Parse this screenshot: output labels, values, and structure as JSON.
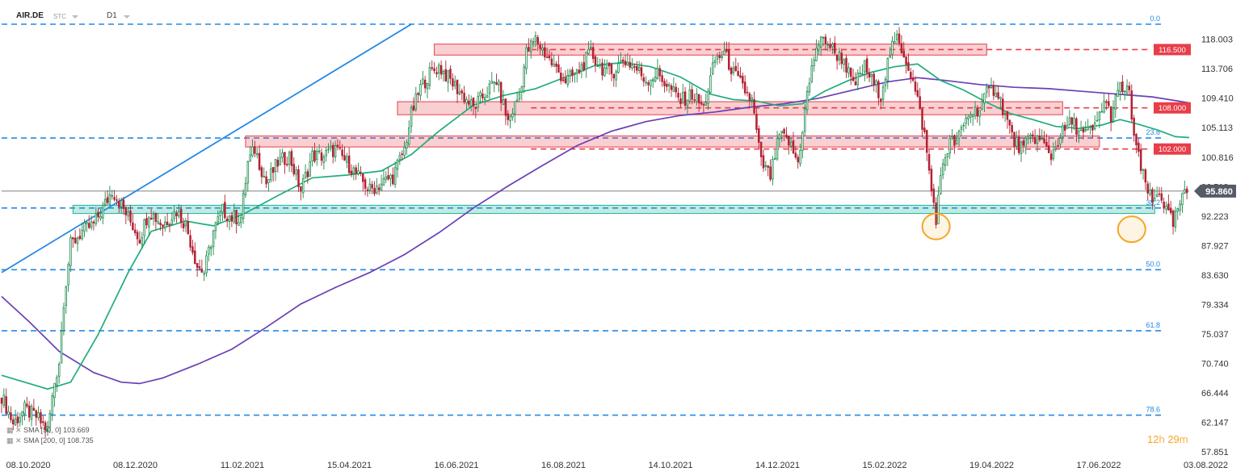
{
  "header": {
    "symbol": "AIR.DE",
    "type": "STC",
    "timeframe": "D1"
  },
  "indicators": [
    {
      "label": "SMA [50, 0]",
      "value": "103.669",
      "color": "#1fad7c"
    },
    {
      "label": "SMA [200, 0]",
      "value": "108.735",
      "color": "#6a3fb5"
    }
  ],
  "timer": {
    "hours": "12",
    "h_unit": "h",
    "minutes": "29",
    "m_unit": "m"
  },
  "colors": {
    "bull": "#1d8a4c",
    "bear": "#b22233",
    "fib": "#2489e6",
    "trend": "#2489e6",
    "resistance": "#e83e4a",
    "support": "#1fb39a",
    "sma50": "#1fad7c",
    "sma200": "#6a3fb5",
    "highlight": "#f5a623",
    "price_tag": "#555b66"
  },
  "chart_data": {
    "type": "candlestick",
    "symbol": "AIR.DE",
    "timeframe": "D1",
    "x_axis_labels": [
      "08.10.2020",
      "08.12.2020",
      "11.02.2021",
      "15.04.2021",
      "16.06.2021",
      "16.08.2021",
      "14.10.2021",
      "14.12.2021",
      "15.02.2022",
      "19.04.2022",
      "17.06.2022",
      "03.08.2022"
    ],
    "y_axis_ticks": [
      "118.003",
      "113.706",
      "109.410",
      "105.113",
      "100.816",
      "96.519",
      "92.223",
      "87.927",
      "83.630",
      "79.334",
      "75.037",
      "70.740",
      "66.444",
      "62.147",
      "57.851"
    ],
    "ylim": [
      57.851,
      120.2
    ],
    "x_index_range": [
      0,
      470
    ],
    "last_price": "95.860",
    "fibonacci_levels": [
      {
        "label": "0.0",
        "price": 120.2
      },
      {
        "label": "23.6",
        "price": 103.6
      },
      {
        "label": "38.2",
        "price": 93.4
      },
      {
        "label": "50.0",
        "price": 84.4
      },
      {
        "label": "61.8",
        "price": 75.5
      },
      {
        "label": "78.6",
        "price": 63.2
      }
    ],
    "horizontal_levels": [
      {
        "label": "116.500",
        "price": 116.5
      },
      {
        "label": "108.000",
        "price": 108.0
      },
      {
        "label": "102.000",
        "price": 102.0
      }
    ],
    "zones": [
      {
        "kind": "resistance",
        "x_from": 188,
        "x_to": 428,
        "low": 115.7,
        "high": 117.3
      },
      {
        "kind": "resistance",
        "x_from": 172,
        "x_to": 461,
        "low": 107.0,
        "high": 108.9
      },
      {
        "kind": "resistance",
        "x_from": 106,
        "x_to": 477,
        "low": 102.3,
        "high": 103.9
      },
      {
        "kind": "support",
        "x_from": 31,
        "x_to": 501,
        "low": 92.6,
        "high": 93.8
      }
    ],
    "trendline": {
      "x1": 0,
      "y1": 84.0,
      "x2": 178,
      "y2": 120.2
    },
    "highlight_circles": [
      {
        "x": 406,
        "y": 90.7
      },
      {
        "x": 491,
        "y": 90.3
      }
    ],
    "anchors": [
      {
        "i": 0,
        "c": 66
      },
      {
        "i": 5,
        "c": 62
      },
      {
        "i": 10,
        "c": 64
      },
      {
        "i": 15,
        "c": 63
      },
      {
        "i": 20,
        "c": 61
      },
      {
        "i": 23,
        "c": 68
      },
      {
        "i": 25,
        "c": 71
      },
      {
        "i": 27,
        "c": 80
      },
      {
        "i": 30,
        "c": 88
      },
      {
        "i": 35,
        "c": 90
      },
      {
        "i": 40,
        "c": 91
      },
      {
        "i": 45,
        "c": 94
      },
      {
        "i": 48,
        "c": 96
      },
      {
        "i": 50,
        "c": 95
      },
      {
        "i": 55,
        "c": 92
      },
      {
        "i": 60,
        "c": 89
      },
      {
        "i": 64,
        "c": 93
      },
      {
        "i": 70,
        "c": 91
      },
      {
        "i": 76,
        "c": 93
      },
      {
        "i": 80,
        "c": 91
      },
      {
        "i": 85,
        "c": 85
      },
      {
        "i": 88,
        "c": 84
      },
      {
        "i": 92,
        "c": 90
      },
      {
        "i": 96,
        "c": 93
      },
      {
        "i": 100,
        "c": 92
      },
      {
        "i": 104,
        "c": 92
      },
      {
        "i": 107,
        "c": 100
      },
      {
        "i": 110,
        "c": 102
      },
      {
        "i": 115,
        "c": 97
      },
      {
        "i": 120,
        "c": 100
      },
      {
        "i": 125,
        "c": 101
      },
      {
        "i": 130,
        "c": 96
      },
      {
        "i": 135,
        "c": 101
      },
      {
        "i": 140,
        "c": 101
      },
      {
        "i": 145,
        "c": 102
      },
      {
        "i": 150,
        "c": 100
      },
      {
        "i": 155,
        "c": 98
      },
      {
        "i": 160,
        "c": 96
      },
      {
        "i": 165,
        "c": 97
      },
      {
        "i": 170,
        "c": 98
      },
      {
        "i": 175,
        "c": 102
      },
      {
        "i": 178,
        "c": 107
      },
      {
        "i": 182,
        "c": 111
      },
      {
        "i": 186,
        "c": 113
      },
      {
        "i": 190,
        "c": 114
      },
      {
        "i": 195,
        "c": 112
      },
      {
        "i": 200,
        "c": 110
      },
      {
        "i": 205,
        "c": 108
      },
      {
        "i": 210,
        "c": 110
      },
      {
        "i": 215,
        "c": 112
      },
      {
        "i": 220,
        "c": 106
      },
      {
        "i": 225,
        "c": 110
      },
      {
        "i": 228,
        "c": 116
      },
      {
        "i": 232,
        "c": 118
      },
      {
        "i": 236,
        "c": 116
      },
      {
        "i": 240,
        "c": 114
      },
      {
        "i": 245,
        "c": 112
      },
      {
        "i": 250,
        "c": 113
      },
      {
        "i": 256,
        "c": 116
      },
      {
        "i": 260,
        "c": 114
      },
      {
        "i": 265,
        "c": 113
      },
      {
        "i": 270,
        "c": 115
      },
      {
        "i": 275,
        "c": 114
      },
      {
        "i": 280,
        "c": 112
      },
      {
        "i": 285,
        "c": 113
      },
      {
        "i": 290,
        "c": 111
      },
      {
        "i": 295,
        "c": 109
      },
      {
        "i": 300,
        "c": 110
      },
      {
        "i": 305,
        "c": 108
      },
      {
        "i": 310,
        "c": 115
      },
      {
        "i": 314,
        "c": 116
      },
      {
        "i": 318,
        "c": 113
      },
      {
        "i": 322,
        "c": 111
      },
      {
        "i": 326,
        "c": 109
      },
      {
        "i": 330,
        "c": 100
      },
      {
        "i": 334,
        "c": 98
      },
      {
        "i": 338,
        "c": 104
      },
      {
        "i": 342,
        "c": 103
      },
      {
        "i": 346,
        "c": 100
      },
      {
        "i": 350,
        "c": 110
      },
      {
        "i": 354,
        "c": 117
      },
      {
        "i": 358,
        "c": 118
      },
      {
        "i": 362,
        "c": 116
      },
      {
        "i": 366,
        "c": 115
      },
      {
        "i": 370,
        "c": 111
      },
      {
        "i": 375,
        "c": 114
      },
      {
        "i": 378,
        "c": 112
      },
      {
        "i": 382,
        "c": 110
      },
      {
        "i": 386,
        "c": 116
      },
      {
        "i": 389,
        "c": 118
      },
      {
        "i": 392,
        "c": 116
      },
      {
        "i": 395,
        "c": 113
      },
      {
        "i": 398,
        "c": 109
      },
      {
        "i": 401,
        "c": 104
      },
      {
        "i": 404,
        "c": 96
      },
      {
        "i": 406,
        "c": 92
      },
      {
        "i": 409,
        "c": 100
      },
      {
        "i": 412,
        "c": 103
      },
      {
        "i": 415,
        "c": 103
      },
      {
        "i": 420,
        "c": 107
      },
      {
        "i": 425,
        "c": 108
      },
      {
        "i": 428,
        "c": 110
      },
      {
        "i": 432,
        "c": 111
      },
      {
        "i": 436,
        "c": 107
      },
      {
        "i": 440,
        "c": 103
      },
      {
        "i": 444,
        "c": 102
      },
      {
        "i": 448,
        "c": 104
      },
      {
        "i": 452,
        "c": 103
      },
      {
        "i": 456,
        "c": 101
      },
      {
        "i": 460,
        "c": 104
      },
      {
        "i": 465,
        "c": 106
      },
      {
        "i": 470,
        "c": 104
      },
      {
        "i": 475,
        "c": 105
      },
      {
        "i": 479,
        "c": 109
      },
      {
        "i": 482,
        "c": 107
      },
      {
        "i": 486,
        "c": 111
      },
      {
        "i": 490,
        "c": 110
      },
      {
        "i": 492,
        "c": 104
      },
      {
        "i": 495,
        "c": 99
      },
      {
        "i": 498,
        "c": 96
      },
      {
        "i": 500,
        "c": 94
      },
      {
        "i": 503,
        "c": 96
      },
      {
        "i": 506,
        "c": 93
      },
      {
        "i": 509,
        "c": 91
      },
      {
        "i": 512,
        "c": 94
      },
      {
        "i": 515,
        "c": 95.86
      }
    ],
    "sma50": [
      {
        "i": 0,
        "v": 69
      },
      {
        "i": 20,
        "v": 67
      },
      {
        "i": 30,
        "v": 68
      },
      {
        "i": 42,
        "v": 75
      },
      {
        "i": 55,
        "v": 84
      },
      {
        "i": 65,
        "v": 90
      },
      {
        "i": 80,
        "v": 91.5
      },
      {
        "i": 92,
        "v": 90.8
      },
      {
        "i": 105,
        "v": 92.5
      },
      {
        "i": 120,
        "v": 95.2
      },
      {
        "i": 135,
        "v": 97.8
      },
      {
        "i": 150,
        "v": 98.2
      },
      {
        "i": 165,
        "v": 98.8
      },
      {
        "i": 178,
        "v": 101.2
      },
      {
        "i": 190,
        "v": 104.6
      },
      {
        "i": 205,
        "v": 108.4
      },
      {
        "i": 218,
        "v": 109.8
      },
      {
        "i": 232,
        "v": 110.8
      },
      {
        "i": 245,
        "v": 112.5
      },
      {
        "i": 258,
        "v": 114.2
      },
      {
        "i": 270,
        "v": 114.6
      },
      {
        "i": 282,
        "v": 114.0
      },
      {
        "i": 295,
        "v": 112.5
      },
      {
        "i": 308,
        "v": 110.0
      },
      {
        "i": 318,
        "v": 109.2
      },
      {
        "i": 328,
        "v": 109.0
      },
      {
        "i": 338,
        "v": 108.3
      },
      {
        "i": 348,
        "v": 108.6
      },
      {
        "i": 358,
        "v": 110.5
      },
      {
        "i": 368,
        "v": 112.0
      },
      {
        "i": 378,
        "v": 113.2
      },
      {
        "i": 388,
        "v": 114.0
      },
      {
        "i": 398,
        "v": 114.4
      },
      {
        "i": 408,
        "v": 112.0
      },
      {
        "i": 418,
        "v": 110.6
      },
      {
        "i": 428,
        "v": 108.8
      },
      {
        "i": 438,
        "v": 107.2
      },
      {
        "i": 448,
        "v": 106.3
      },
      {
        "i": 458,
        "v": 105.3
      },
      {
        "i": 468,
        "v": 105.0
      },
      {
        "i": 478,
        "v": 105.5
      },
      {
        "i": 486,
        "v": 106.3
      },
      {
        "i": 494,
        "v": 105.6
      },
      {
        "i": 502,
        "v": 104.8
      },
      {
        "i": 510,
        "v": 103.8
      },
      {
        "i": 516,
        "v": 103.669
      }
    ],
    "sma200": [
      {
        "i": 0,
        "v": 80.5
      },
      {
        "i": 12,
        "v": 76.8
      },
      {
        "i": 25,
        "v": 72.5
      },
      {
        "i": 40,
        "v": 69.4
      },
      {
        "i": 52,
        "v": 68.0
      },
      {
        "i": 60,
        "v": 67.8
      },
      {
        "i": 70,
        "v": 68.6
      },
      {
        "i": 85,
        "v": 70.6
      },
      {
        "i": 100,
        "v": 72.8
      },
      {
        "i": 115,
        "v": 76.0
      },
      {
        "i": 130,
        "v": 79.4
      },
      {
        "i": 145,
        "v": 81.8
      },
      {
        "i": 160,
        "v": 84.0
      },
      {
        "i": 175,
        "v": 86.6
      },
      {
        "i": 190,
        "v": 89.8
      },
      {
        "i": 205,
        "v": 93.4
      },
      {
        "i": 220,
        "v": 96.6
      },
      {
        "i": 235,
        "v": 99.6
      },
      {
        "i": 250,
        "v": 102.5
      },
      {
        "i": 265,
        "v": 104.6
      },
      {
        "i": 280,
        "v": 106.0
      },
      {
        "i": 295,
        "v": 106.9
      },
      {
        "i": 310,
        "v": 107.4
      },
      {
        "i": 325,
        "v": 108.1
      },
      {
        "i": 340,
        "v": 108.6
      },
      {
        "i": 355,
        "v": 109.4
      },
      {
        "i": 370,
        "v": 110.6
      },
      {
        "i": 385,
        "v": 111.8
      },
      {
        "i": 398,
        "v": 112.4
      },
      {
        "i": 410,
        "v": 112.0
      },
      {
        "i": 425,
        "v": 111.4
      },
      {
        "i": 440,
        "v": 111.0
      },
      {
        "i": 455,
        "v": 110.8
      },
      {
        "i": 470,
        "v": 110.4
      },
      {
        "i": 485,
        "v": 110.0
      },
      {
        "i": 500,
        "v": 109.6
      },
      {
        "i": 516,
        "v": 108.735
      }
    ]
  }
}
